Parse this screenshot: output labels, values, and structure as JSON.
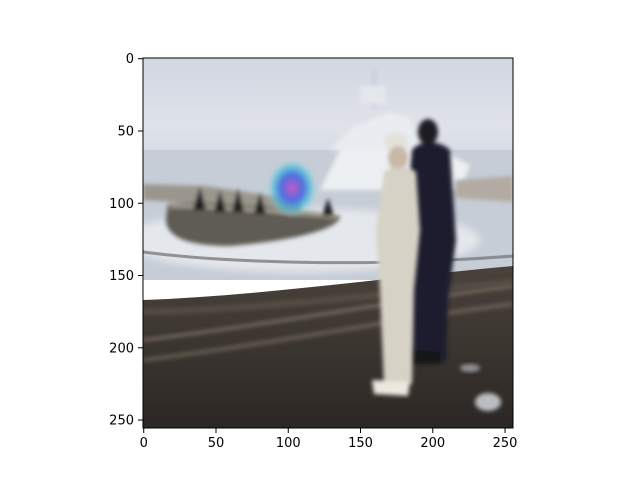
{
  "figure": {
    "image": {
      "description": "",
      "x_range": [
        0,
        256
      ],
      "y_range": [
        0,
        256
      ],
      "y_inverted": true,
      "palette": {
        "sky": "#d6dce6",
        "sea": "#c5ccd6",
        "water_light": "#e3e6ec",
        "boat_hull": "#6b6860",
        "boat_hull_light": "#8b877d",
        "ship": "#e8ebef",
        "deck": "#3c3631",
        "rail": "#2b2622",
        "rail_highlight": "#8a7e70",
        "sailor_white": "#d9d5c9",
        "officer_dark": "#1a1d2e",
        "glow_blue": "#4b6ee0",
        "glow_magenta": "#c45ac8",
        "glow_cyan": "#3ec6d8"
      }
    },
    "x_axis": {
      "ticks": [
        {
          "value": 0,
          "label": "0"
        },
        {
          "value": 50,
          "label": "50"
        },
        {
          "value": 100,
          "label": "100"
        },
        {
          "value": 150,
          "label": "150"
        },
        {
          "value": 200,
          "label": "200"
        },
        {
          "value": 250,
          "label": "250"
        }
      ]
    },
    "y_axis": {
      "ticks": [
        {
          "value": 0,
          "label": "0"
        },
        {
          "value": 50,
          "label": "50"
        },
        {
          "value": 100,
          "label": "100"
        },
        {
          "value": 150,
          "label": "150"
        },
        {
          "value": 200,
          "label": "200"
        },
        {
          "value": 250,
          "label": "250"
        }
      ]
    }
  }
}
